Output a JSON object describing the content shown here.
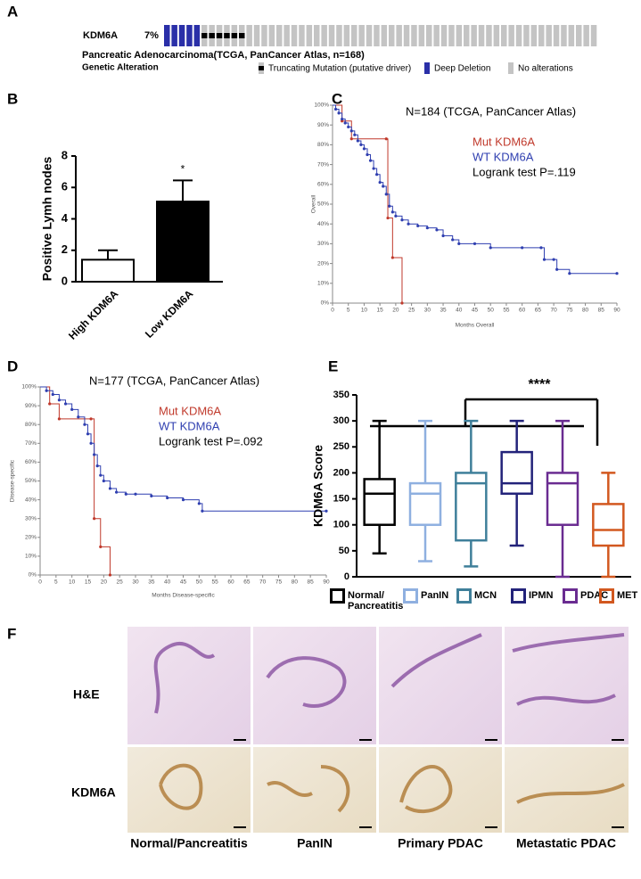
{
  "panel_labels": [
    "A",
    "B",
    "C",
    "D",
    "E",
    "F"
  ],
  "chart_data": [
    {
      "type": "oncoprint",
      "gene": "KDM6A",
      "percent": "7%",
      "subtitle": "Pancreatic Adenocarcinoma(TCGA, PanCancer Atlas, n=168)",
      "legend_title": "Genetic Alteration",
      "series": [
        {
          "name": "Truncating Mutation (putative driver)",
          "color": "#000000",
          "values": [
            6
          ]
        },
        {
          "name": "Deep Deletion",
          "color": "#2a2fa8",
          "values": [
            5
          ]
        },
        {
          "name": "No alterations",
          "color": "#c4c4c4",
          "values": [
            47
          ]
        }
      ]
    },
    {
      "type": "bar",
      "y_label": "Positive Lymh nodes",
      "categories": [
        "High KDM6A",
        "Low KDM6A"
      ],
      "values": [
        1.4,
        5.1
      ],
      "errors": [
        0.6,
        1.35
      ],
      "colors": [
        "#ffffff",
        "#000000"
      ],
      "ylim": [
        0,
        8
      ],
      "yticks": [
        0,
        2,
        4,
        6,
        8
      ],
      "annotation": "*"
    },
    {
      "type": "survival",
      "title": "N=184 (TCGA, PanCancer Atlas)",
      "annotation": "Logrank test P=.119",
      "x_label": "Months Overall",
      "y_label": "Overall",
      "xlim": [
        0,
        90
      ],
      "ylim": [
        0,
        100
      ],
      "xticks": [
        0,
        5,
        10,
        15,
        20,
        25,
        30,
        35,
        40,
        45,
        50,
        55,
        60,
        65,
        70,
        75,
        80,
        85,
        90
      ],
      "yticks": [
        {
          "value": 0,
          "label": "0%"
        },
        {
          "value": 10,
          "label": "10%"
        },
        {
          "value": 20,
          "label": "20%"
        },
        {
          "value": 30,
          "label": "30%"
        },
        {
          "value": 40,
          "label": "40%"
        },
        {
          "value": 50,
          "label": "50%"
        },
        {
          "value": 60,
          "label": "60%"
        },
        {
          "value": 70,
          "label": "70%"
        },
        {
          "value": 80,
          "label": "80%"
        },
        {
          "value": 90,
          "label": "90%"
        },
        {
          "value": 100,
          "label": "100%"
        }
      ],
      "series": [
        {
          "name": "Mut KDM6A",
          "color": "#c0392b",
          "x": [
            0,
            3,
            6,
            17,
            17.5,
            19,
            22
          ],
          "values": [
            100,
            92,
            83,
            83,
            43,
            23,
            0
          ]
        },
        {
          "name": "WT KDM6A",
          "color": "#2f3fb0",
          "x": [
            0,
            1,
            2,
            3,
            4,
            5,
            6,
            7,
            8,
            9,
            10,
            11,
            12,
            13,
            14,
            15,
            16,
            17,
            18,
            19,
            20,
            22,
            24,
            27,
            30,
            33,
            35,
            38,
            40,
            45,
            50,
            60,
            66,
            67,
            70,
            71,
            75,
            90
          ],
          "values": [
            100,
            98,
            96,
            93,
            91,
            89,
            87,
            85,
            82,
            80,
            78,
            75,
            72,
            68,
            65,
            61,
            59,
            55,
            49,
            46,
            44,
            42,
            40,
            39,
            38,
            37,
            34,
            32,
            30,
            30,
            28,
            28,
            28,
            22,
            22,
            17,
            15,
            15
          ]
        }
      ]
    },
    {
      "type": "survival",
      "title": "N=177 (TCGA, PanCancer Atlas)",
      "annotation": "Logrank test P=.092",
      "x_label": "Months Disease-specific",
      "y_label": "Disease-specific",
      "xlim": [
        0,
        90
      ],
      "ylim": [
        0,
        100
      ],
      "xticks": [
        0,
        5,
        10,
        15,
        20,
        25,
        30,
        35,
        40,
        45,
        50,
        55,
        60,
        65,
        70,
        75,
        80,
        85,
        90
      ],
      "yticks": [
        {
          "value": 0,
          "label": "0%"
        },
        {
          "value": 10,
          "label": "10%"
        },
        {
          "value": 20,
          "label": "20%"
        },
        {
          "value": 30,
          "label": "30%"
        },
        {
          "value": 40,
          "label": "40%"
        },
        {
          "value": 50,
          "label": "50%"
        },
        {
          "value": 60,
          "label": "60%"
        },
        {
          "value": 70,
          "label": "70%"
        },
        {
          "value": 80,
          "label": "80%"
        },
        {
          "value": 90,
          "label": "90%"
        },
        {
          "value": 100,
          "label": "100%"
        }
      ],
      "series": [
        {
          "name": "Mut KDM6A",
          "color": "#c0392b",
          "x": [
            0,
            3,
            6,
            16,
            17,
            19,
            22
          ],
          "values": [
            100,
            91,
            83,
            83,
            30,
            15,
            0
          ]
        },
        {
          "name": "WT KDM6A",
          "color": "#2f3fb0",
          "x": [
            0,
            2,
            4,
            6,
            8,
            10,
            12,
            14,
            15,
            16,
            17,
            18,
            19,
            20,
            22,
            24,
            27,
            30,
            35,
            40,
            45,
            50,
            51,
            90
          ],
          "values": [
            100,
            98,
            96,
            93,
            91,
            88,
            84,
            80,
            75,
            70,
            64,
            58,
            53,
            50,
            46,
            44,
            43,
            43,
            42,
            41,
            40,
            38,
            34,
            34
          ]
        }
      ]
    },
    {
      "type": "box",
      "y_label": "KDM6A Score",
      "annotation": "****",
      "ylim": [
        0,
        350
      ],
      "yticks": [
        0,
        50,
        100,
        150,
        200,
        250,
        300,
        350
      ],
      "series": [
        {
          "name": "Normal/\nPancreatitis",
          "color": "#000000",
          "low": 45,
          "q1": 100,
          "median": 160,
          "q3": 188,
          "high": 300
        },
        {
          "name": "PanIN",
          "color": "#8fb0e0",
          "low": 30,
          "q1": 100,
          "median": 160,
          "q3": 180,
          "high": 300
        },
        {
          "name": "MCN",
          "color": "#3f7f9a",
          "low": 20,
          "q1": 70,
          "median": 180,
          "q3": 200,
          "high": 300
        },
        {
          "name": "IPMN",
          "color": "#23237a",
          "low": 60,
          "q1": 160,
          "median": 180,
          "q3": 240,
          "high": 300
        },
        {
          "name": "PDAC",
          "color": "#6a2c91",
          "low": 0,
          "q1": 100,
          "median": 180,
          "q3": 200,
          "high": 300
        },
        {
          "name": "MET",
          "color": "#d2581f",
          "low": 0,
          "q1": 60,
          "median": 90,
          "q3": 140,
          "high": 200
        }
      ]
    }
  ],
  "figure_f": {
    "row_labels": [
      "H&E",
      "KDM6A"
    ],
    "column_labels": [
      "Normal/Pancreatitis",
      "PanIN",
      "Primary PDAC",
      "Metastatic PDAC"
    ]
  }
}
